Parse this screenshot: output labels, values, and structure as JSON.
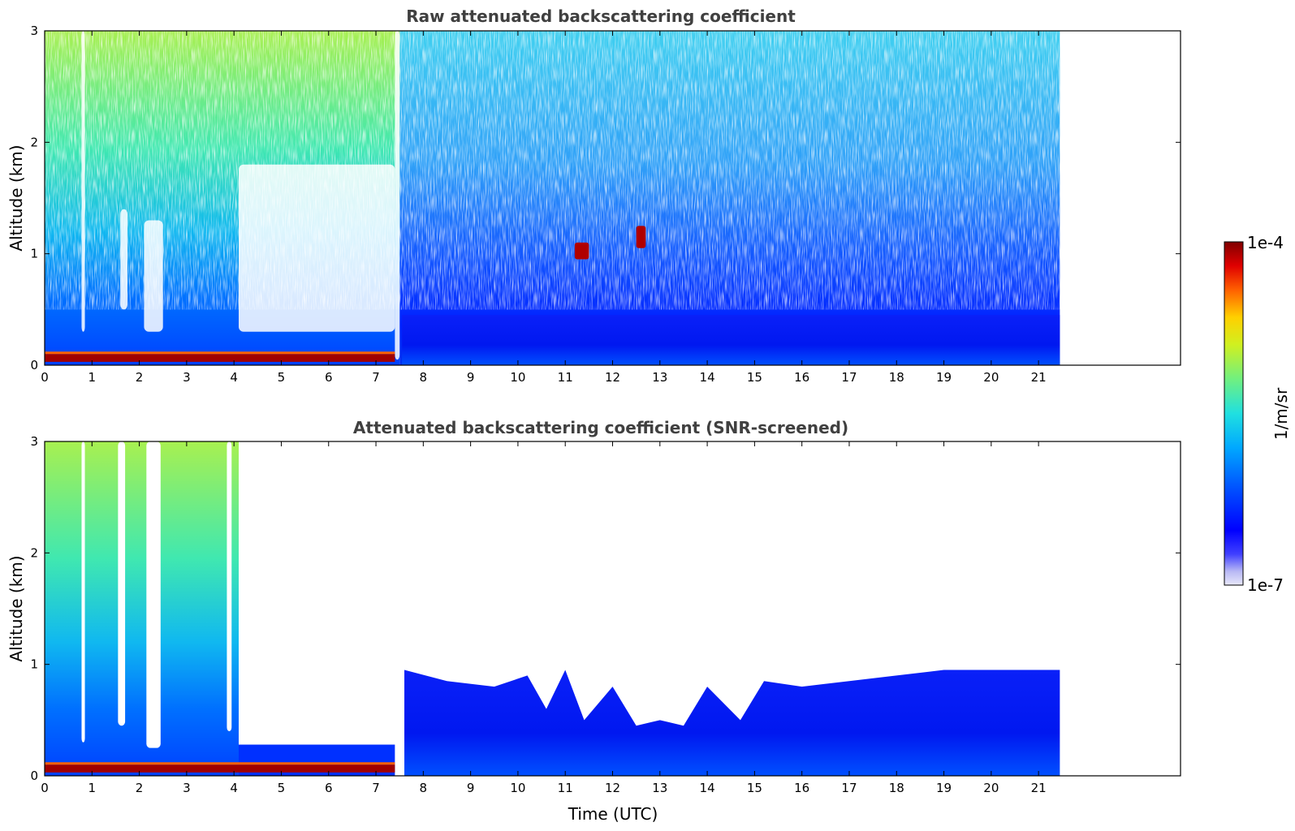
{
  "chart_data": [
    {
      "type": "heatmap",
      "title": "Raw attenuated backscattering coefficient",
      "xlabel": "",
      "ylabel": "Altitude (km)",
      "xlim": [
        0,
        24
      ],
      "ylim": [
        0,
        3
      ],
      "x_ticks": [
        "0",
        "1",
        "2",
        "3",
        "4",
        "5",
        "6",
        "7",
        "8",
        "9",
        "10",
        "11",
        "12",
        "13",
        "14",
        "15",
        "16",
        "17",
        "18",
        "19",
        "20",
        "21"
      ],
      "y_ticks": [
        "0",
        "1",
        "2",
        "3"
      ],
      "data_extent_hours": [
        0,
        21.45
      ],
      "features": [
        {
          "name": "surface layer",
          "time": [
            0,
            7.4
          ],
          "altitude_km": [
            0.03,
            0.1
          ],
          "level": "1e-4"
        },
        {
          "name": "aerosol layer",
          "time": [
            0,
            7.4
          ],
          "altitude_km": [
            0.1,
            3.0
          ],
          "level": "high"
        },
        {
          "name": "boundary layer",
          "time": [
            7.6,
            21.45
          ],
          "altitude_km": [
            0,
            0.45
          ],
          "level": "low"
        },
        {
          "name": "cloud",
          "time": [
            11.2,
            11.5
          ],
          "altitude_km": [
            0.95,
            1.1
          ],
          "level": "1e-4"
        },
        {
          "name": "cloud",
          "time": [
            12.5,
            12.7
          ],
          "altitude_km": [
            1.05,
            1.25
          ],
          "level": "1e-4"
        }
      ]
    },
    {
      "type": "heatmap",
      "title": "Attenuated backscattering coefficient (SNR-screened)",
      "xlabel": "Time (UTC)",
      "ylabel": "Altitude (km)",
      "xlim": [
        0,
        24
      ],
      "ylim": [
        0,
        3
      ],
      "x_ticks": [
        "0",
        "1",
        "2",
        "3",
        "4",
        "5",
        "6",
        "7",
        "8",
        "9",
        "10",
        "11",
        "12",
        "13",
        "14",
        "15",
        "16",
        "17",
        "18",
        "19",
        "20",
        "21"
      ],
      "y_ticks": [
        "0",
        "1",
        "2",
        "3"
      ],
      "data_extent_hours": [
        0,
        21.45
      ],
      "features": [
        {
          "name": "surface layer",
          "time": [
            0,
            7.4
          ],
          "altitude_km": [
            0.03,
            0.1
          ],
          "level": "1e-4"
        },
        {
          "name": "aerosol layer",
          "time": [
            0,
            4.1
          ],
          "altitude_km": [
            0.1,
            3.0
          ],
          "level": "high"
        },
        {
          "name": "boundary layer",
          "time": [
            7.6,
            21.45
          ],
          "altitude_km": [
            0,
            0.95
          ],
          "level": "low"
        }
      ]
    }
  ],
  "colorbar": {
    "label": "1/m/sr",
    "max_label": "1e-4",
    "min_label": "1e-7",
    "colormap": [
      "#e0e0f8",
      "#b0b0f0",
      "#0000ff",
      "#0060ff",
      "#00c0ff",
      "#40f0c0",
      "#a0f040",
      "#ffe000",
      "#ff6000",
      "#d00000",
      "#800000"
    ]
  }
}
